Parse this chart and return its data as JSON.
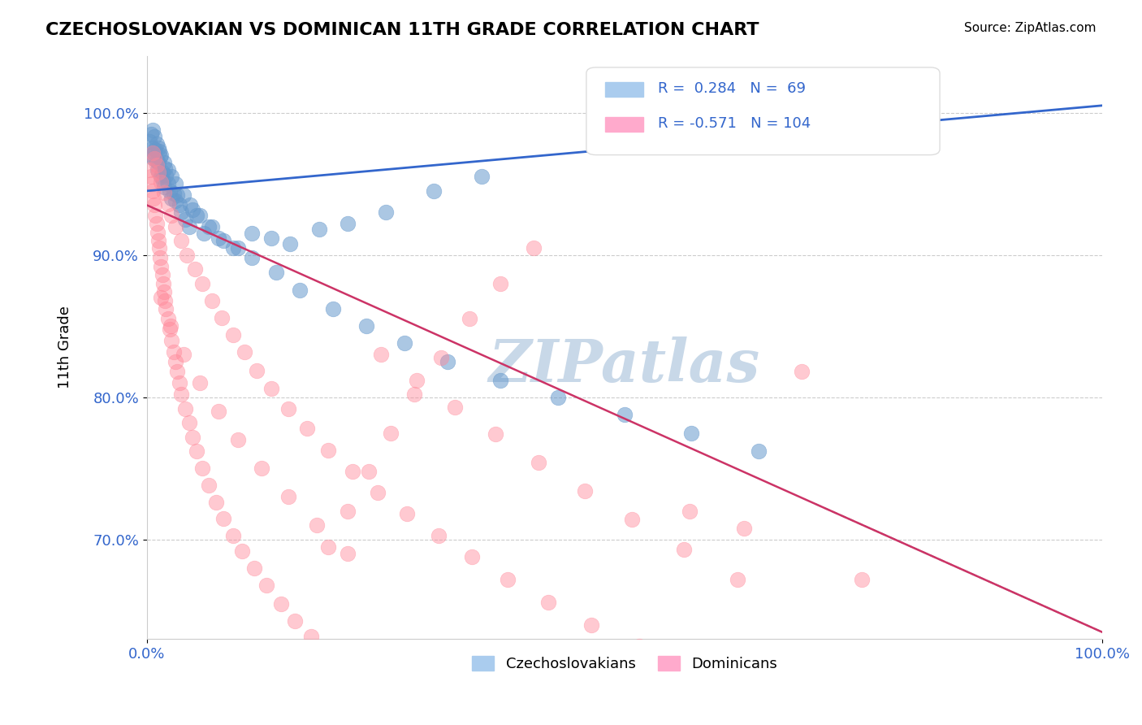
{
  "title": "CZECHOSLOVAKIAN VS DOMINICAN 11TH GRADE CORRELATION CHART",
  "source_text": "Source: ZipAtlas.com",
  "xlabel": "",
  "ylabel": "11th Grade",
  "xlim": [
    0.0,
    1.0
  ],
  "ylim": [
    0.62,
    1.04
  ],
  "xticks": [
    0.0,
    0.25,
    0.5,
    0.75,
    1.0
  ],
  "xticklabels": [
    "0.0%",
    "",
    "",
    "",
    "100.0%"
  ],
  "yticks": [
    0.7,
    0.8,
    0.9,
    1.0
  ],
  "yticklabels": [
    "70.0%",
    "80.0%",
    "90.0%",
    "100.0%"
  ],
  "blue_R": 0.284,
  "blue_N": 69,
  "pink_R": -0.571,
  "pink_N": 104,
  "blue_color": "#6699cc",
  "pink_color": "#ff8899",
  "blue_line_color": "#3366cc",
  "pink_line_color": "#cc3366",
  "watermark": "ZIPatlas",
  "watermark_color": "#c8d8e8",
  "legend_blue_label": "Czechoslovakians",
  "legend_pink_label": "Dominicans",
  "blue_scatter_x": [
    0.005,
    0.006,
    0.007,
    0.008,
    0.009,
    0.01,
    0.011,
    0.012,
    0.013,
    0.014,
    0.015,
    0.016,
    0.017,
    0.018,
    0.019,
    0.02,
    0.022,
    0.024,
    0.026,
    0.028,
    0.03,
    0.032,
    0.034,
    0.036,
    0.04,
    0.044,
    0.048,
    0.052,
    0.06,
    0.068,
    0.08,
    0.095,
    0.11,
    0.13,
    0.15,
    0.18,
    0.21,
    0.25,
    0.3,
    0.35,
    0.003,
    0.004,
    0.006,
    0.008,
    0.01,
    0.012,
    0.015,
    0.018,
    0.022,
    0.026,
    0.03,
    0.038,
    0.045,
    0.055,
    0.065,
    0.075,
    0.09,
    0.11,
    0.135,
    0.16,
    0.195,
    0.23,
    0.27,
    0.315,
    0.37,
    0.43,
    0.5,
    0.57,
    0.64
  ],
  "blue_scatter_y": [
    0.97,
    0.975,
    0.968,
    0.972,
    0.974,
    0.966,
    0.96,
    0.965,
    0.973,
    0.969,
    0.955,
    0.958,
    0.952,
    0.948,
    0.961,
    0.956,
    0.95,
    0.945,
    0.94,
    0.943,
    0.938,
    0.942,
    0.935,
    0.93,
    0.925,
    0.92,
    0.932,
    0.928,
    0.915,
    0.92,
    0.91,
    0.905,
    0.915,
    0.912,
    0.908,
    0.918,
    0.922,
    0.93,
    0.945,
    0.955,
    0.98,
    0.985,
    0.988,
    0.983,
    0.978,
    0.975,
    0.97,
    0.965,
    0.96,
    0.955,
    0.95,
    0.942,
    0.935,
    0.928,
    0.92,
    0.912,
    0.905,
    0.898,
    0.888,
    0.875,
    0.862,
    0.85,
    0.838,
    0.825,
    0.812,
    0.8,
    0.788,
    0.775,
    0.762
  ],
  "pink_scatter_x": [
    0.003,
    0.004,
    0.005,
    0.006,
    0.007,
    0.008,
    0.009,
    0.01,
    0.011,
    0.012,
    0.013,
    0.014,
    0.015,
    0.016,
    0.017,
    0.018,
    0.019,
    0.02,
    0.022,
    0.024,
    0.026,
    0.028,
    0.03,
    0.032,
    0.034,
    0.036,
    0.04,
    0.044,
    0.048,
    0.052,
    0.058,
    0.065,
    0.072,
    0.08,
    0.09,
    0.1,
    0.112,
    0.125,
    0.14,
    0.155,
    0.172,
    0.19,
    0.21,
    0.232,
    0.255,
    0.28,
    0.308,
    0.338,
    0.37,
    0.405,
    0.006,
    0.008,
    0.01,
    0.012,
    0.015,
    0.018,
    0.022,
    0.026,
    0.03,
    0.036,
    0.042,
    0.05,
    0.058,
    0.068,
    0.078,
    0.09,
    0.102,
    0.115,
    0.13,
    0.148,
    0.168,
    0.19,
    0.215,
    0.242,
    0.272,
    0.305,
    0.34,
    0.378,
    0.42,
    0.465,
    0.515,
    0.568,
    0.625,
    0.685,
    0.748,
    0.015,
    0.025,
    0.038,
    0.055,
    0.075,
    0.095,
    0.12,
    0.148,
    0.178,
    0.21,
    0.245,
    0.282,
    0.322,
    0.365,
    0.41,
    0.458,
    0.508,
    0.562,
    0.618
  ],
  "pink_scatter_y": [
    0.96,
    0.955,
    0.95,
    0.945,
    0.94,
    0.935,
    0.928,
    0.922,
    0.916,
    0.91,
    0.905,
    0.898,
    0.892,
    0.886,
    0.88,
    0.874,
    0.868,
    0.862,
    0.855,
    0.848,
    0.84,
    0.832,
    0.825,
    0.818,
    0.81,
    0.802,
    0.792,
    0.782,
    0.772,
    0.762,
    0.75,
    0.738,
    0.726,
    0.715,
    0.703,
    0.692,
    0.68,
    0.668,
    0.655,
    0.643,
    0.632,
    0.695,
    0.72,
    0.748,
    0.775,
    0.802,
    0.828,
    0.855,
    0.88,
    0.905,
    0.972,
    0.968,
    0.963,
    0.958,
    0.951,
    0.944,
    0.936,
    0.928,
    0.92,
    0.91,
    0.9,
    0.89,
    0.88,
    0.868,
    0.856,
    0.844,
    0.832,
    0.819,
    0.806,
    0.792,
    0.778,
    0.763,
    0.748,
    0.733,
    0.718,
    0.703,
    0.688,
    0.672,
    0.656,
    0.64,
    0.625,
    0.72,
    0.708,
    0.818,
    0.672,
    0.87,
    0.85,
    0.83,
    0.81,
    0.79,
    0.77,
    0.75,
    0.73,
    0.71,
    0.69,
    0.83,
    0.812,
    0.793,
    0.774,
    0.754,
    0.734,
    0.714,
    0.693,
    0.672
  ]
}
